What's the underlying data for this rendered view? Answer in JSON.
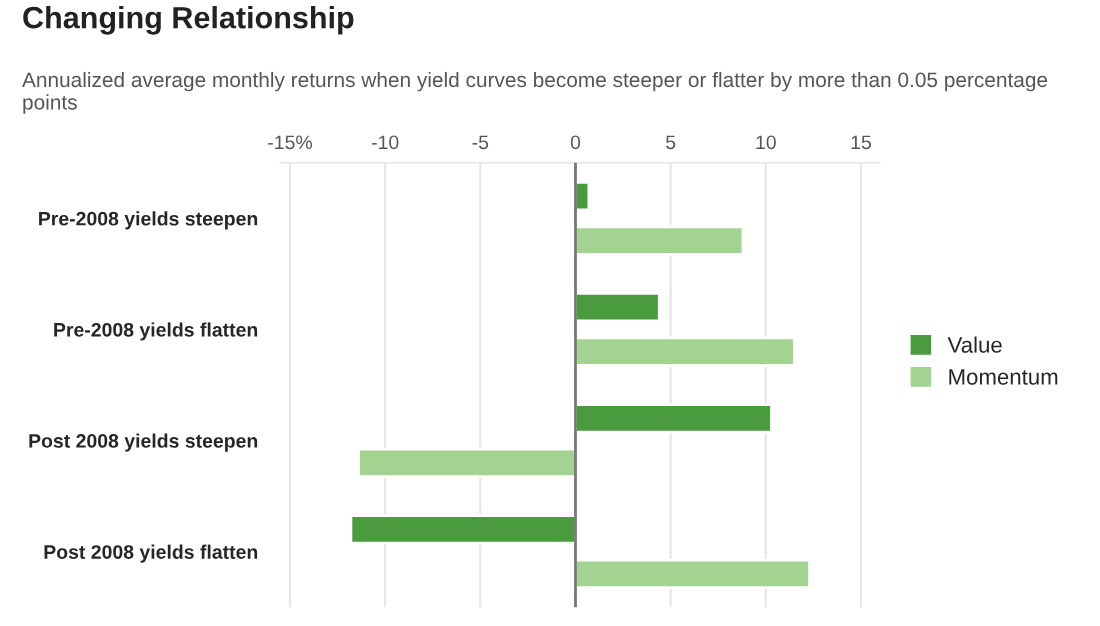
{
  "chart_data": {
    "type": "bar",
    "orientation": "horizontal",
    "title": "Changing Relationship",
    "subtitle": "Annualized average monthly returns when yield curves become steeper or flatter by more than 0.05 percentage points",
    "categories": [
      "Pre-2008 yields steepen",
      "Pre-2008 yields flatten",
      "Post 2008 yields steepen",
      "Post 2008 yields flatten"
    ],
    "series": [
      {
        "name": "Value",
        "color": "#4a9a3e",
        "values": [
          0.7,
          4.4,
          10.3,
          -11.8
        ]
      },
      {
        "name": "Momentum",
        "color": "#a3d391",
        "values": [
          8.8,
          11.5,
          -11.4,
          12.3
        ]
      }
    ],
    "xlim": [
      -15.5,
      16
    ],
    "xticks": [
      {
        "value": -15,
        "label": "-15%"
      },
      -10,
      -5,
      0,
      5,
      10,
      15
    ],
    "grid": "x",
    "legend": "right"
  }
}
